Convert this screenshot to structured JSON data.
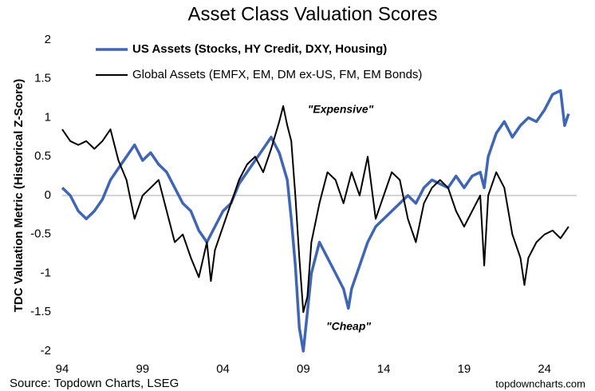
{
  "chart_data": {
    "type": "line",
    "title": "Asset Class Valuation Scores",
    "y_label": "TDC Valuation Metric (Historical Z-Score)",
    "source": "Source: Topdown Charts, LSEG",
    "watermark": "topdowncharts.com",
    "annotations": [
      {
        "text": "\"Expensive\"",
        "color": "#7b1c1c"
      },
      {
        "text": "\"Cheap\"",
        "color": "#1e6b2a"
      }
    ],
    "xlim": [
      1994,
      2026
    ],
    "xticks": [
      {
        "value": 1994,
        "label": "94"
      },
      {
        "value": 1999,
        "label": "99"
      },
      {
        "value": 2004,
        "label": "04"
      },
      {
        "value": 2009,
        "label": "09"
      },
      {
        "value": 2014,
        "label": "14"
      },
      {
        "value": 2019,
        "label": "19"
      },
      {
        "value": 2024,
        "label": "24"
      }
    ],
    "ylim": [
      -2,
      2
    ],
    "yticks": [
      -2,
      -1.5,
      -1,
      -0.5,
      0,
      0.5,
      1,
      1.5,
      2
    ],
    "zero_line": true,
    "legend": "top-left",
    "series": [
      {
        "name": "US Assets (Stocks, HY Credit, DXY, Housing)",
        "color": "#3f66b4",
        "width": 3.5,
        "x": [
          1994,
          1994.5,
          1995,
          1995.5,
          1996,
          1996.5,
          1997,
          1997.5,
          1998,
          1998.5,
          1999,
          1999.5,
          2000,
          2000.5,
          2001,
          2001.5,
          2002,
          2002.5,
          2003,
          2003.5,
          2004,
          2004.5,
          2005,
          2005.5,
          2006,
          2006.5,
          2007,
          2007.5,
          2008,
          2008.25,
          2008.5,
          2008.75,
          2009,
          2009.25,
          2009.5,
          2010,
          2010.5,
          2011,
          2011.5,
          2011.8,
          2012,
          2012.5,
          2013,
          2013.5,
          2014,
          2014.5,
          2015,
          2015.5,
          2016,
          2016.5,
          2017,
          2017.5,
          2018,
          2018.5,
          2019,
          2019.5,
          2020,
          2020.25,
          2020.5,
          2021,
          2021.5,
          2022,
          2022.5,
          2023,
          2023.5,
          2024,
          2024.5,
          2025,
          2025.25,
          2025.5
        ],
        "values": [
          0.1,
          0.0,
          -0.2,
          -0.3,
          -0.2,
          -0.05,
          0.2,
          0.35,
          0.5,
          0.65,
          0.45,
          0.55,
          0.4,
          0.3,
          0.1,
          -0.1,
          -0.2,
          -0.45,
          -0.6,
          -0.4,
          -0.2,
          -0.1,
          0.15,
          0.3,
          0.45,
          0.6,
          0.75,
          0.55,
          0.2,
          -0.3,
          -0.9,
          -1.7,
          -2.0,
          -1.5,
          -1.0,
          -0.6,
          -0.8,
          -1.0,
          -1.2,
          -1.45,
          -1.2,
          -0.9,
          -0.6,
          -0.4,
          -0.3,
          -0.2,
          -0.1,
          0.0,
          -0.1,
          0.1,
          0.2,
          0.15,
          0.1,
          0.25,
          0.1,
          0.25,
          0.3,
          0.1,
          0.5,
          0.8,
          0.95,
          0.75,
          0.9,
          1.0,
          0.95,
          1.1,
          1.3,
          1.35,
          0.9,
          1.05
        ]
      },
      {
        "name": "Global Assets (EMFX, EM, DM ex-US, FM, EM Bonds)",
        "color": "#000000",
        "width": 2,
        "x": [
          1994,
          1994.5,
          1995,
          1995.5,
          1996,
          1996.5,
          1997,
          1997.5,
          1998,
          1998.5,
          1999,
          1999.5,
          2000,
          2000.5,
          2001,
          2001.5,
          2002,
          2002.5,
          2003,
          2003.25,
          2003.5,
          2004,
          2004.5,
          2005,
          2005.5,
          2006,
          2006.5,
          2007,
          2007.5,
          2007.75,
          2008,
          2008.25,
          2008.5,
          2008.75,
          2009,
          2009.25,
          2009.5,
          2010,
          2010.5,
          2011,
          2011.5,
          2012,
          2012.5,
          2013,
          2013.5,
          2014,
          2014.5,
          2015,
          2015.5,
          2016,
          2016.5,
          2017,
          2017.5,
          2018,
          2018.5,
          2019,
          2019.5,
          2020,
          2020.25,
          2020.5,
          2021,
          2021.5,
          2022,
          2022.5,
          2022.75,
          2023,
          2023.5,
          2024,
          2024.5,
          2025,
          2025.5
        ],
        "values": [
          0.85,
          0.7,
          0.65,
          0.7,
          0.6,
          0.7,
          0.85,
          0.45,
          0.2,
          -0.3,
          0.0,
          0.1,
          0.2,
          -0.2,
          -0.6,
          -0.5,
          -0.8,
          -1.05,
          -0.6,
          -1.1,
          -0.7,
          -0.4,
          -0.1,
          0.2,
          0.4,
          0.5,
          0.3,
          0.6,
          0.95,
          1.15,
          0.9,
          0.7,
          0.0,
          -0.8,
          -1.5,
          -1.3,
          -0.6,
          -0.1,
          0.3,
          0.2,
          -0.1,
          0.3,
          0.0,
          0.5,
          -0.3,
          0.0,
          0.3,
          0.2,
          -0.3,
          -0.6,
          -0.1,
          0.1,
          0.2,
          0.1,
          -0.2,
          -0.4,
          -0.2,
          0.0,
          -0.9,
          0.0,
          0.3,
          0.1,
          -0.5,
          -0.8,
          -1.15,
          -0.8,
          -0.6,
          -0.5,
          -0.45,
          -0.55,
          -0.4
        ]
      }
    ]
  }
}
